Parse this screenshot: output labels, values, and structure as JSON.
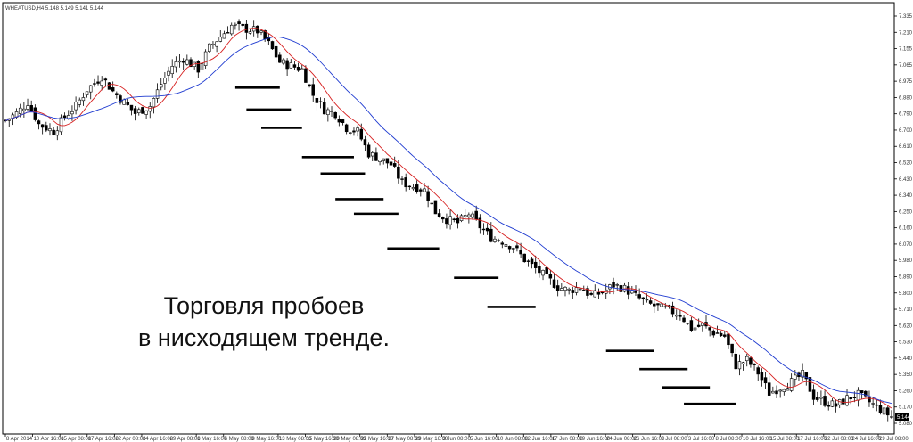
{
  "chart_data": {
    "type": "candlestick",
    "header": "WHEATUSD,H4  5.148 5.149 5.141 5.144",
    "current_price_label": "5.144",
    "annotation_lines": [
      "Торговля пробоев",
      "в нисходящем тренде."
    ],
    "y_ticks": [
      "7.335",
      "7.210",
      "7.155",
      "7.065",
      "6.975",
      "6.880",
      "6.790",
      "6.700",
      "6.610",
      "6.520",
      "6.430",
      "6.340",
      "6.250",
      "6.160",
      "6.070",
      "5.980",
      "5.890",
      "5.800",
      "5.710",
      "5.620",
      "5.530",
      "5.440",
      "5.350",
      "5.260",
      "5.170",
      "5.080"
    ],
    "x_ticks": [
      "8 Apr 2014",
      "10 Apr 16:00",
      "15 Apr 08:00",
      "17 Apr 16:00",
      "22 Apr 08:00",
      "24 Apr 16:00",
      "29 Apr 08:00",
      "1 May 16:00",
      "6 May 08:00",
      "8 May 16:00",
      "13 May 08:00",
      "15 May 16:00",
      "20 May 08:00",
      "22 May 16:00",
      "27 May 08:00",
      "29 May 16:00",
      "3 Jun 08:00",
      "5 Jun 16:00",
      "10 Jun 08:00",
      "12 Jun 16:00",
      "17 Jun 08:00",
      "19 Jun 16:00",
      "24 Jun 08:00",
      "26 Jun 16:00",
      "1 Jul 08:00",
      "3 Jul 16:00",
      "8 Jul 08:00",
      "10 Jul 16:00",
      "15 Jul 08:00",
      "17 Jul 16:00",
      "22 Jul 08:00",
      "24 Jul 16:00",
      "29 Jul 08:00"
    ],
    "y_range": [
      5.05,
      7.4
    ],
    "price_path": [
      [
        0,
        6.76
      ],
      [
        3,
        6.8
      ],
      [
        6,
        6.86
      ],
      [
        9,
        6.74
      ],
      [
        13,
        6.7
      ],
      [
        16,
        6.78
      ],
      [
        19,
        6.84
      ],
      [
        22,
        6.93
      ],
      [
        26,
        7.0
      ],
      [
        29,
        6.92
      ],
      [
        32,
        6.86
      ],
      [
        35,
        6.8
      ],
      [
        39,
        6.84
      ],
      [
        42,
        6.96
      ],
      [
        45,
        7.06
      ],
      [
        48,
        7.1
      ],
      [
        52,
        7.04
      ],
      [
        55,
        7.16
      ],
      [
        58,
        7.22
      ],
      [
        61,
        7.28
      ],
      [
        65,
        7.26
      ],
      [
        68,
        7.25
      ],
      [
        71,
        7.18
      ],
      [
        74,
        7.08
      ],
      [
        77,
        7.06
      ],
      [
        80,
        7.04
      ],
      [
        83,
        6.9
      ],
      [
        86,
        6.82
      ],
      [
        89,
        6.8
      ],
      [
        92,
        6.72
      ],
      [
        95,
        6.7
      ],
      [
        98,
        6.58
      ],
      [
        101,
        6.55
      ],
      [
        104,
        6.52
      ],
      [
        107,
        6.42
      ],
      [
        110,
        6.4
      ],
      [
        113,
        6.38
      ],
      [
        116,
        6.26
      ],
      [
        119,
        6.22
      ],
      [
        122,
        6.2
      ],
      [
        125,
        6.25
      ],
      [
        128,
        6.18
      ],
      [
        131,
        6.12
      ],
      [
        134,
        6.1
      ],
      [
        137,
        6.07
      ],
      [
        140,
        6.0
      ],
      [
        143,
        5.95
      ],
      [
        146,
        5.9
      ],
      [
        149,
        5.85
      ],
      [
        152,
        5.83
      ],
      [
        155,
        5.85
      ],
      [
        158,
        5.8
      ],
      [
        161,
        5.82
      ],
      [
        164,
        5.86
      ],
      [
        167,
        5.84
      ],
      [
        170,
        5.8
      ],
      [
        173,
        5.76
      ],
      [
        176,
        5.74
      ],
      [
        179,
        5.72
      ],
      [
        182,
        5.7
      ],
      [
        185,
        5.62
      ],
      [
        188,
        5.64
      ],
      [
        191,
        5.6
      ],
      [
        194,
        5.58
      ],
      [
        197,
        5.42
      ],
      [
        200,
        5.45
      ],
      [
        203,
        5.38
      ],
      [
        206,
        5.27
      ],
      [
        209,
        5.3
      ],
      [
        212,
        5.33
      ],
      [
        215,
        5.37
      ],
      [
        218,
        5.25
      ],
      [
        221,
        5.22
      ],
      [
        224,
        5.2
      ],
      [
        227,
        5.24
      ],
      [
        230,
        5.26
      ],
      [
        233,
        5.22
      ],
      [
        236,
        5.18
      ],
      [
        239,
        5.14
      ]
    ],
    "series": [
      {
        "name": "",
        "color": "#d62020"
      },
      {
        "name": "",
        "color": "#1f3bd0"
      }
    ],
    "breakout_levels": [
      {
        "x_start": 62,
        "x_end": 74,
        "price": 6.94
      },
      {
        "x_start": 65,
        "x_end": 77,
        "price": 6.82
      },
      {
        "x_start": 69,
        "x_end": 80,
        "price": 6.72
      },
      {
        "x_start": 80,
        "x_end": 94,
        "price": 6.56
      },
      {
        "x_start": 85,
        "x_end": 97,
        "price": 6.47
      },
      {
        "x_start": 89,
        "x_end": 102,
        "price": 6.33
      },
      {
        "x_start": 94,
        "x_end": 106,
        "price": 6.25
      },
      {
        "x_start": 103,
        "x_end": 117,
        "price": 6.06
      },
      {
        "x_start": 121,
        "x_end": 133,
        "price": 5.9
      },
      {
        "x_start": 130,
        "x_end": 143,
        "price": 5.74
      },
      {
        "x_start": 162,
        "x_end": 175,
        "price": 5.5
      },
      {
        "x_start": 171,
        "x_end": 184,
        "price": 5.4
      },
      {
        "x_start": 177,
        "x_end": 190,
        "price": 5.3
      },
      {
        "x_start": 183,
        "x_end": 197,
        "price": 5.21
      }
    ]
  }
}
